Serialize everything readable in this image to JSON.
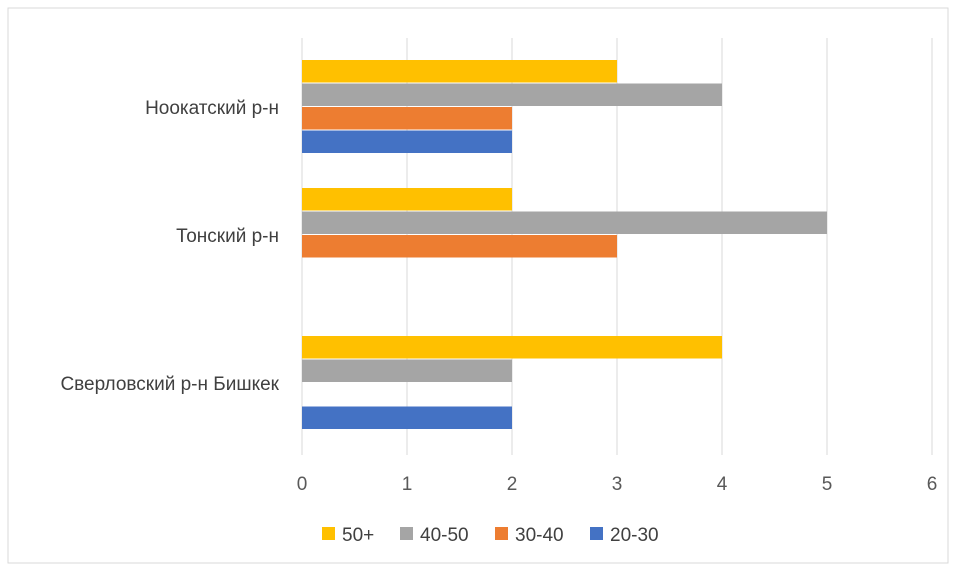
{
  "chart_data": {
    "type": "bar",
    "orientation": "horizontal",
    "categories": [
      "Ноокатский р-н",
      "Тонский р-н",
      "Сверловский р-н Бишкек"
    ],
    "series": [
      {
        "name": "50+",
        "color": "#FFC000",
        "values": [
          3,
          2,
          4
        ]
      },
      {
        "name": "40-50",
        "color": "#A5A5A5",
        "values": [
          4,
          5,
          2
        ]
      },
      {
        "name": "30-40",
        "color": "#ED7D31",
        "values": [
          2,
          3,
          null
        ]
      },
      {
        "name": "20-30",
        "color": "#4472C4",
        "values": [
          2,
          null,
          2
        ]
      }
    ],
    "xlim": [
      0,
      6
    ],
    "xticks": [
      "0",
      "1",
      "2",
      "3",
      "4",
      "5",
      "6"
    ],
    "grid": "vertical",
    "legend": "bottom"
  }
}
